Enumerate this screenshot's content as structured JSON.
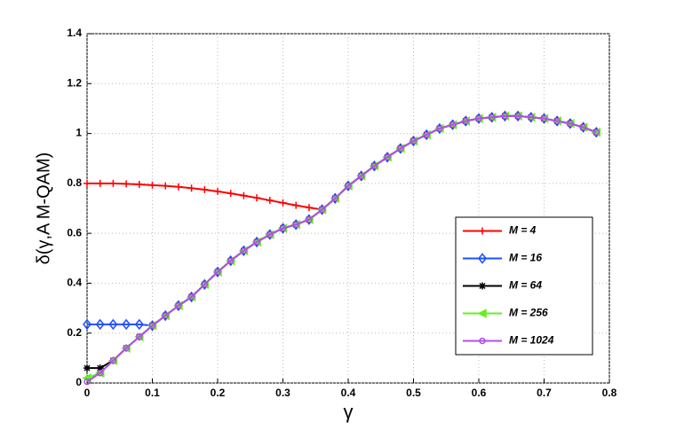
{
  "chart_data": {
    "type": "line",
    "xlabel": "γ",
    "ylabel": "δ(γ,A M-QAM)",
    "x": [
      0,
      0.02,
      0.04,
      0.06,
      0.08,
      0.1,
      0.12,
      0.14,
      0.16,
      0.18,
      0.2,
      0.22,
      0.24,
      0.26,
      0.28,
      0.3,
      0.32,
      0.34,
      0.36,
      0.38,
      0.4,
      0.42,
      0.44,
      0.46,
      0.48,
      0.5,
      0.52,
      0.54,
      0.56,
      0.58,
      0.6,
      0.62,
      0.64,
      0.66,
      0.68,
      0.7,
      0.72,
      0.74,
      0.76,
      0.78
    ],
    "xlim": [
      0,
      0.8
    ],
    "xticks": [
      0,
      0.1,
      0.2,
      0.3,
      0.4,
      0.5,
      0.6,
      0.7,
      0.8
    ],
    "ylim": [
      0,
      1.4
    ],
    "yticks": [
      0,
      0.2,
      0.4,
      0.6,
      0.8,
      1,
      1.2,
      1.4
    ],
    "grid": true,
    "legend": "lower right",
    "series": [
      {
        "name": "M = 4",
        "color": "#ff0000",
        "marker": "plus",
        "values": [
          0.8,
          0.8,
          0.8,
          0.798,
          0.796,
          0.793,
          0.79,
          0.786,
          0.781,
          0.775,
          0.768,
          0.76,
          0.751,
          0.742,
          0.732,
          0.722,
          0.712,
          0.703,
          0.695,
          0.74,
          0.79,
          0.83,
          0.87,
          0.905,
          0.94,
          0.97,
          0.995,
          1.02,
          1.035,
          1.05,
          1.06,
          1.065,
          1.07,
          1.07,
          1.065,
          1.06,
          1.05,
          1.04,
          1.025,
          1.005
        ]
      },
      {
        "name": "M = 16",
        "color": "#1f4fff",
        "marker": "diamond",
        "values": [
          0.235,
          0.235,
          0.235,
          0.235,
          0.235,
          0.23,
          0.27,
          0.31,
          0.345,
          0.395,
          0.445,
          0.49,
          0.53,
          0.565,
          0.595,
          0.62,
          0.635,
          0.655,
          0.695,
          0.74,
          0.79,
          0.83,
          0.87,
          0.905,
          0.94,
          0.97,
          0.995,
          1.02,
          1.035,
          1.05,
          1.06,
          1.065,
          1.07,
          1.07,
          1.065,
          1.06,
          1.05,
          1.04,
          1.025,
          1.005
        ]
      },
      {
        "name": "M = 64",
        "color": "#000000",
        "marker": "star",
        "values": [
          0.06,
          0.06,
          0.09,
          0.14,
          0.185,
          0.23,
          0.27,
          0.31,
          0.345,
          0.395,
          0.445,
          0.49,
          0.53,
          0.565,
          0.595,
          0.62,
          0.635,
          0.655,
          0.695,
          0.74,
          0.79,
          0.83,
          0.87,
          0.905,
          0.94,
          0.97,
          0.995,
          1.02,
          1.035,
          1.05,
          1.06,
          1.065,
          1.07,
          1.07,
          1.065,
          1.06,
          1.05,
          1.04,
          1.025,
          1.005
        ]
      },
      {
        "name": "M = 256",
        "color": "#66ee22",
        "marker": "triangle-left",
        "values": [
          0.02,
          0.04,
          0.09,
          0.14,
          0.185,
          0.23,
          0.27,
          0.31,
          0.345,
          0.395,
          0.445,
          0.49,
          0.53,
          0.565,
          0.595,
          0.62,
          0.635,
          0.655,
          0.695,
          0.74,
          0.79,
          0.83,
          0.87,
          0.905,
          0.94,
          0.97,
          0.995,
          1.02,
          1.035,
          1.05,
          1.06,
          1.065,
          1.07,
          1.07,
          1.065,
          1.06,
          1.05,
          1.04,
          1.025,
          1.005
        ]
      },
      {
        "name": "M = 1024",
        "color": "#b04fe8",
        "marker": "circle",
        "values": [
          0.005,
          0.04,
          0.09,
          0.14,
          0.185,
          0.23,
          0.27,
          0.31,
          0.345,
          0.395,
          0.445,
          0.49,
          0.53,
          0.565,
          0.595,
          0.62,
          0.635,
          0.655,
          0.695,
          0.74,
          0.79,
          0.83,
          0.87,
          0.905,
          0.94,
          0.97,
          0.995,
          1.02,
          1.035,
          1.05,
          1.06,
          1.065,
          1.07,
          1.07,
          1.065,
          1.06,
          1.05,
          1.04,
          1.025,
          1.005
        ]
      }
    ]
  }
}
